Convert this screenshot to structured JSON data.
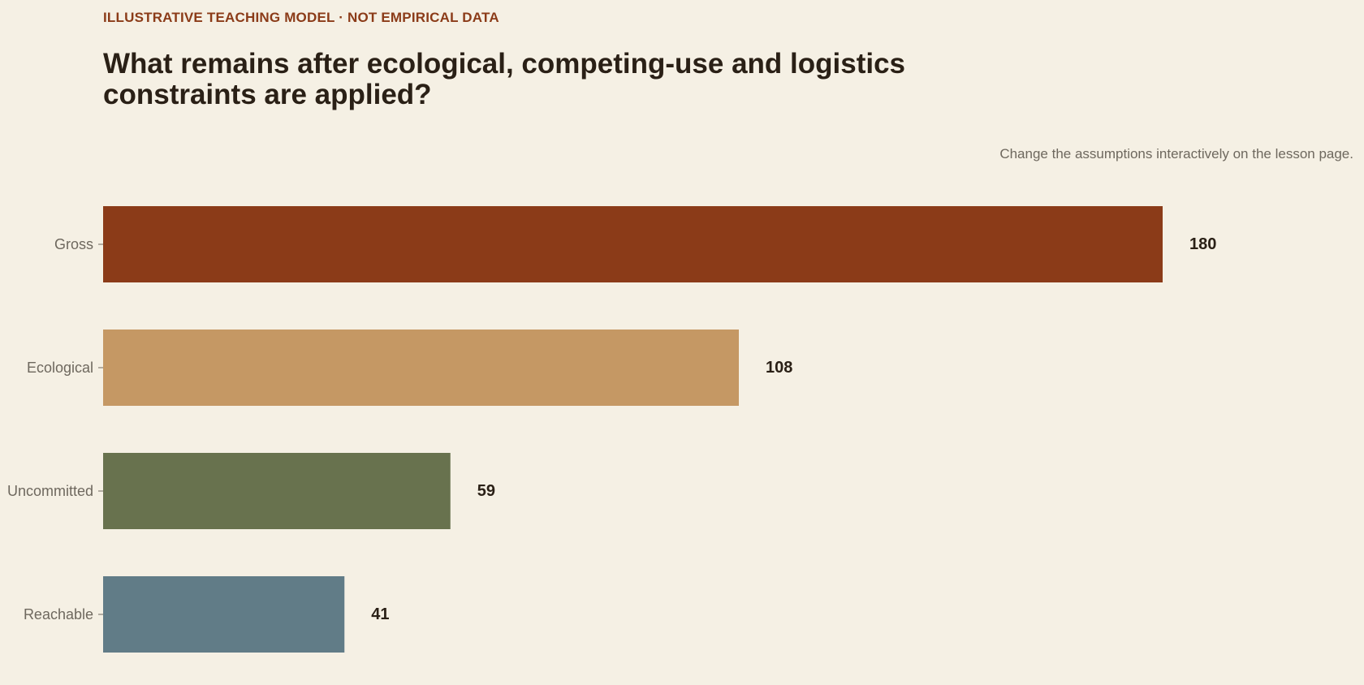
{
  "header": {
    "eyebrow": "ILLUSTRATIVE TEACHING MODEL · NOT EMPIRICAL DATA",
    "title": "What remains after ecological, competing-use and logistics constraints are applied?",
    "note": "Change the assumptions interactively on the lesson page."
  },
  "colors": {
    "background": "#f5f0e4",
    "eyebrow": "#8b3b18",
    "title": "#2a2016",
    "muted": "#6e685e",
    "value_label": "#2a2016"
  },
  "chart_data": {
    "type": "bar",
    "orientation": "horizontal",
    "categories": [
      "Gross",
      "Ecological",
      "Uncommitted",
      "Reachable"
    ],
    "values": [
      180,
      108,
      59,
      41
    ],
    "colors": [
      "#8b3b18",
      "#c59864",
      "#68724e",
      "#617c87"
    ],
    "title": "What remains after ecological, competing-use and logistics constraints are applied?",
    "xlabel": "",
    "ylabel": "",
    "xlim": [
      0,
      180
    ],
    "grid": false,
    "legend": "none",
    "data_labels": true
  }
}
